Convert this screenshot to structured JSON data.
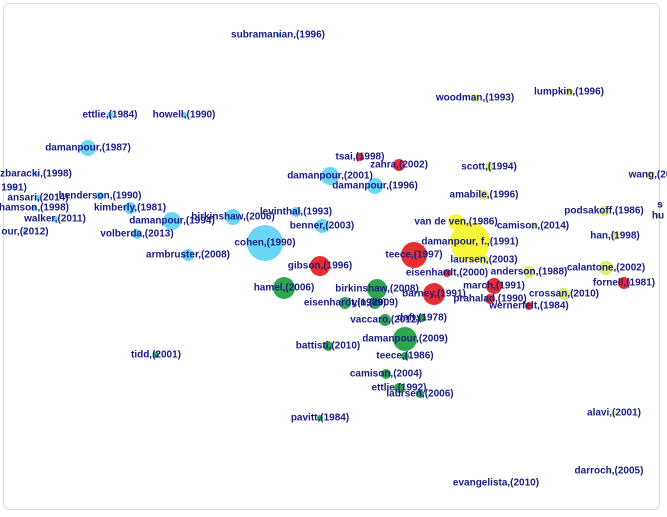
{
  "nodes": [
    {
      "label": "subramanian,(1996)",
      "color": "#5ad2f4"
    },
    {
      "label": "woodman,(1993)",
      "color": "#d9ee5c"
    },
    {
      "label": "lumpkin,(1996)",
      "color": "#d9ee5c"
    },
    {
      "label": "ettlie,(1984)",
      "color": "#5ad2f4"
    },
    {
      "label": "howell,(1990)",
      "color": "#5ad2f4"
    },
    {
      "label": "damanpour,(1987)",
      "color": "#5ad2f4"
    },
    {
      "label": "tsai,(1998)",
      "color": "#e3171c"
    },
    {
      "label": "zahra,(2002)",
      "color": "#e3171c"
    },
    {
      "label": "scott,(1994)",
      "color": "#d9ee5c"
    },
    {
      "label": "wang,(20",
      "color": "#d9ee5c"
    },
    {
      "label": "zbaracki,(1998)",
      "color": "#5ad2f4"
    },
    {
      "label": "damanpour,(2001)",
      "color": "#5ad2f4"
    },
    {
      "label": "damanpour,(1996)",
      "color": "#5ad2f4"
    },
    {
      "label": "1991)",
      "color": "#5ad2f4"
    },
    {
      "label": "amabile,(1996)",
      "color": "#d9ee5c"
    },
    {
      "label": "ansari,(2014)",
      "color": "#5ad2f4"
    },
    {
      "label": "henderson,(1990)",
      "color": "#5ad2f4"
    },
    {
      "label": "hamson,(1998)",
      "color": "#5ad2f4"
    },
    {
      "label": "kimberly,(1981)",
      "color": "#5ad2f4"
    },
    {
      "label": "walker,(2011)",
      "color": "#5ad2f4"
    },
    {
      "label": "birkinshaw,(2006)",
      "color": "#5ad2f4"
    },
    {
      "label": "levinthal,(1993)",
      "color": "#5ad2f4"
    },
    {
      "label": "damanpour,(1994)",
      "color": "#5ad2f4"
    },
    {
      "label": "benner,(2003)",
      "color": "#5ad2f4"
    },
    {
      "label": "van de ven,(1986)",
      "color": "#f6f524"
    },
    {
      "label": "camison,(2014)",
      "color": "#d9ee5c"
    },
    {
      "label": "podsakoff,(1986)",
      "color": "#d9ee5c"
    },
    {
      "label": "s",
      "color": "#d9ee5c"
    },
    {
      "label": "hu",
      "color": "#d9ee5c"
    },
    {
      "label": "our,(2012)",
      "color": "#5ad2f4"
    },
    {
      "label": "volberda,(2013)",
      "color": "#5ad2f4"
    },
    {
      "label": "cohen,(1990)",
      "color": "#5ad2f4"
    },
    {
      "label": "damanpour, f.,(1991)",
      "color": "#f6f524"
    },
    {
      "label": "han,(1998)",
      "color": "#d9ee5c"
    },
    {
      "label": "teece,(1997)",
      "color": "#e3171c"
    },
    {
      "label": "laursen,(2003)",
      "color": "#d9ee5c"
    },
    {
      "label": "armbruster,(2008)",
      "color": "#5ad2f4"
    },
    {
      "label": "gibson,(1996)",
      "color": "#e3171c"
    },
    {
      "label": "anderson,(1988)",
      "color": "#d9ee5c"
    },
    {
      "label": "calantone,(2002)",
      "color": "#d9ee5c"
    },
    {
      "label": "eisenhardt,(2000)",
      "color": "#e3171c"
    },
    {
      "label": "hamel,(2006)",
      "color": "#169c3c"
    },
    {
      "label": "birkinshaw,(2008)",
      "color": "#169c3c"
    },
    {
      "label": "march,(1991)",
      "color": "#e3171c"
    },
    {
      "label": "fornell,(1981)",
      "color": "#e3171c"
    },
    {
      "label": "barney,(1991)",
      "color": "#e3171c"
    },
    {
      "label": "eisenhardt,(1989)",
      "color": "#169c3c"
    },
    {
      "label": "yin,(2009)",
      "color": "#169c3c"
    },
    {
      "label": "prahalad,(1990)",
      "color": "#e3171c"
    },
    {
      "label": "crossan,(2010)",
      "color": "#d9ee5c"
    },
    {
      "label": "wernerfelt,(1984)",
      "color": "#e3171c"
    },
    {
      "label": "vaccaro,(2012)",
      "color": "#169c3c"
    },
    {
      "label": "daft,(1978)",
      "color": "#169c3c"
    },
    {
      "label": "damanpour,(2009)",
      "color": "#169c3c"
    },
    {
      "label": "battisti,(2010)",
      "color": "#169c3c"
    },
    {
      "label": "tidd,(2001)",
      "color": "#169c3c"
    },
    {
      "label": "teece,(1986)",
      "color": "#169c3c"
    },
    {
      "label": "camison,(2004)",
      "color": "#169c3c"
    },
    {
      "label": "ettlie,(1992)",
      "color": "#169c3c"
    },
    {
      "label": "laursen,(2006)",
      "color": "#169c3c"
    },
    {
      "label": "alavi,(2001)",
      "color": "#d9ee5c"
    },
    {
      "label": "pavitt,(1984)",
      "color": "#169c3c"
    },
    {
      "label": "darroch,(2005)",
      "color": "#d9ee5c"
    },
    {
      "label": "evangelista,(2010)",
      "color": "#d9ee5c"
    }
  ]
}
